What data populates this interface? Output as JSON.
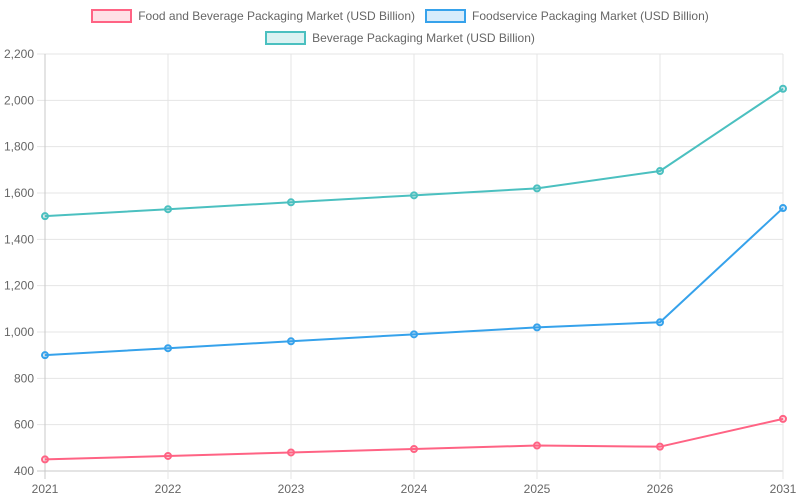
{
  "chart_data": {
    "type": "line",
    "title": "",
    "xlabel": "",
    "ylabel": "",
    "categories": [
      "2021",
      "2022",
      "2023",
      "2024",
      "2025",
      "2026",
      "2031"
    ],
    "ylim": [
      400,
      2200
    ],
    "yticks": [
      "400",
      "600",
      "800",
      "1,000",
      "1,200",
      "1,400",
      "1,600",
      "1,800",
      "2,000",
      "2,200"
    ],
    "grid": true,
    "legend_position": "top",
    "series": [
      {
        "name": "Food and Beverage Packaging Market (USD Billion)",
        "color": "#ff6384",
        "fill": "rgba(255,99,132,0.2)",
        "values": [
          450,
          465,
          480,
          495,
          510,
          505,
          625
        ]
      },
      {
        "name": "Foodservice Packaging Market (USD Billion)",
        "color": "#36a2eb",
        "fill": "rgba(54,162,235,0.2)",
        "values": [
          900,
          930,
          960,
          990,
          1020,
          1042,
          1535
        ]
      },
      {
        "name": "Beverage Packaging Market (USD Billion)",
        "color": "#4bc0c0",
        "fill": "rgba(75,192,192,0.2)",
        "values": [
          1500,
          1530,
          1560,
          1590,
          1620,
          1695,
          2050
        ]
      }
    ]
  }
}
